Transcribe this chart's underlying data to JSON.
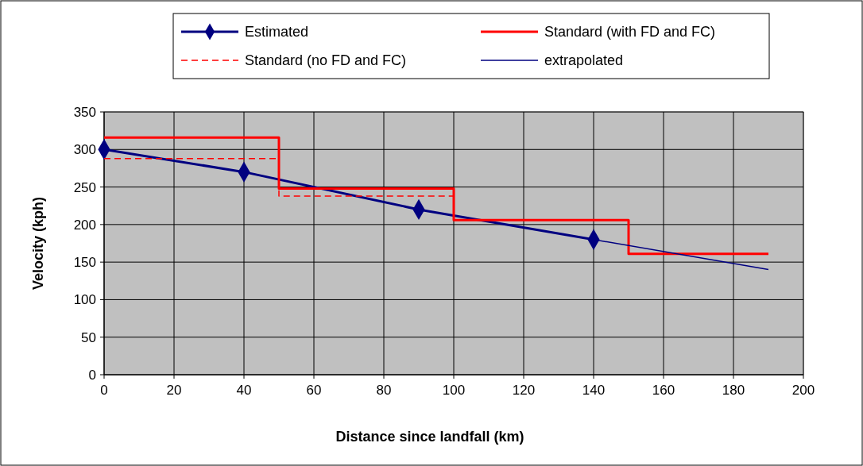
{
  "chart_data": {
    "type": "line",
    "xlabel": "Distance since landfall (km)",
    "ylabel": "Velocity (kph)",
    "xlim": [
      0,
      200
    ],
    "xticks": [
      0,
      20,
      40,
      60,
      80,
      100,
      120,
      140,
      160,
      180,
      200
    ],
    "ylim": [
      0,
      350
    ],
    "yticks": [
      0,
      50,
      100,
      150,
      200,
      250,
      300,
      350
    ],
    "grid": true,
    "legend": "top",
    "series": [
      {
        "name": "Estimated",
        "color": "#000080",
        "x": [
          0,
          40,
          90,
          140
        ],
        "values": [
          300,
          270,
          220,
          180
        ],
        "marker": "diamond",
        "line_style": "solid"
      },
      {
        "name": "Standard (with FD and FC)",
        "color": "#ff0000",
        "x": [
          0,
          50,
          50,
          100,
          100,
          150,
          150,
          190
        ],
        "values": [
          316,
          316,
          248,
          248,
          206,
          206,
          161,
          161
        ],
        "marker": "none",
        "line_style": "solid"
      },
      {
        "name": "Standard (no FD and FC)",
        "color": "#ff0000",
        "x": [
          0,
          50,
          50,
          100
        ],
        "values": [
          288,
          288,
          238,
          238
        ],
        "marker": "none",
        "line_style": "dashed"
      },
      {
        "name": "extrapolated",
        "color": "#000080",
        "x": [
          140,
          190
        ],
        "values": [
          180,
          140
        ],
        "marker": "none",
        "line_style": "solid"
      }
    ]
  }
}
